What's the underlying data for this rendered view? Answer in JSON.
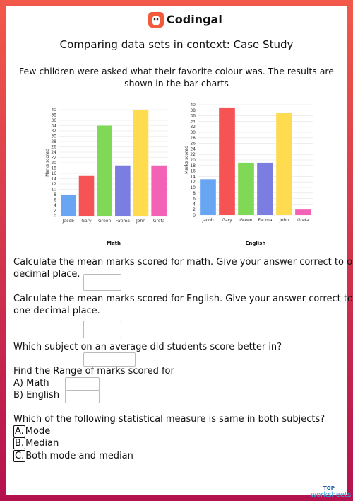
{
  "header": {
    "brand": "Codingal"
  },
  "title": "Comparing data sets in context: Case Study",
  "intro": [
    "Few children were asked what their favorite colour was. The results are",
    "shown in the bar charts"
  ],
  "chart_data": [
    {
      "type": "bar",
      "title": "Math",
      "y_label": "Marks scored",
      "categories": [
        "Jacob",
        "Gary",
        "Green",
        "Fatima",
        "John",
        "Greta"
      ],
      "values": [
        8,
        15,
        34,
        19,
        40,
        19
      ],
      "colors": [
        "#68a6f3",
        "#f65355",
        "#7fd957",
        "#7b7ee0",
        "#ffdb50",
        "#f462b6"
      ],
      "ylim": [
        0,
        40
      ],
      "yticks": [
        0,
        2,
        4,
        6,
        8,
        10,
        12,
        14,
        16,
        18,
        20,
        22,
        24,
        26,
        28,
        30,
        32,
        34,
        36,
        38,
        40
      ],
      "grid": true
    },
    {
      "type": "bar",
      "title": "English",
      "y_label": "Marks scored",
      "categories": [
        "Jacob",
        "Gary",
        "Green",
        "Fatima",
        "John",
        "Greta"
      ],
      "values": [
        13,
        39,
        19,
        19,
        37,
        2
      ],
      "colors": [
        "#68a6f3",
        "#f65355",
        "#7fd957",
        "#7b7ee0",
        "#ffdb50",
        "#f462b6"
      ],
      "ylim": [
        0,
        40
      ],
      "yticks": [
        0,
        2,
        4,
        6,
        8,
        10,
        12,
        14,
        16,
        18,
        20,
        22,
        24,
        26,
        28,
        30,
        32,
        34,
        36,
        38,
        40
      ],
      "grid": true
    }
  ],
  "questions": {
    "q1": [
      "Calculate the mean marks scored for math. Give your answer correct to one",
      "decimal place."
    ],
    "q2": [
      "Calculate the mean marks scored for English. Give your answer correct to",
      "one decimal place."
    ],
    "q3": "Which subject on an average did students score better in?",
    "q4": {
      "text": "Find the Range of marks scored for",
      "a": "A) Math",
      "b": "B) English"
    },
    "q5": {
      "text": "Which of the following statistical measure is same in both subjects?",
      "options": [
        {
          "letter": "A.",
          "text": "Mode"
        },
        {
          "letter": "B.",
          "text": "Median"
        },
        {
          "letter": "C.",
          "text": "Both mode and median"
        }
      ]
    }
  },
  "footer": {
    "top": "TOP",
    "brand": "worksheets"
  }
}
